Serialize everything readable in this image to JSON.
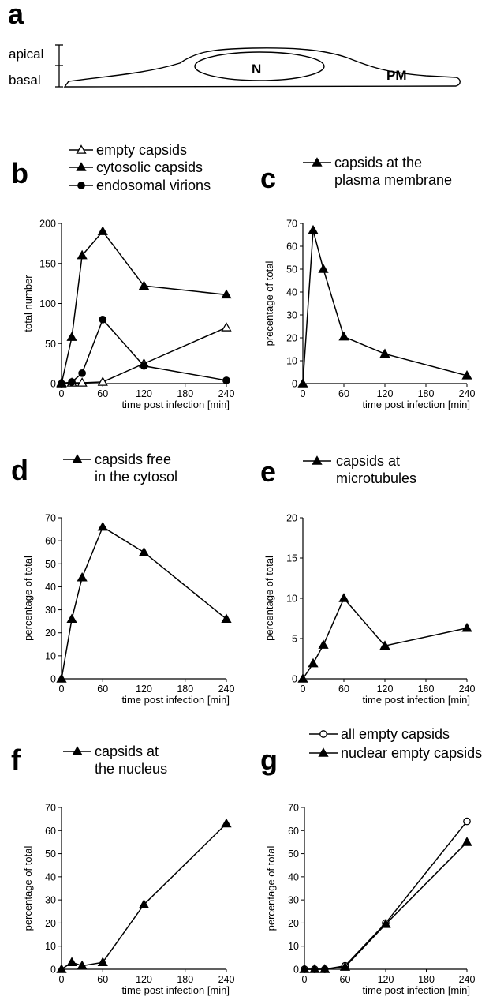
{
  "panel_a": {
    "letter": "a",
    "apical_label": "apical",
    "basal_label": "basal",
    "nucleus_label": "N",
    "membrane_label": "PM"
  },
  "chart_data": [
    {
      "id": "b",
      "letter": "b",
      "type": "line",
      "ylabel": "total number",
      "xlabel": "time post infection [min]",
      "xlim": [
        0,
        240
      ],
      "ylim": [
        0,
        200
      ],
      "xticks": [
        0,
        60,
        120,
        180,
        240
      ],
      "yticks": [
        0,
        50,
        100,
        150,
        200
      ],
      "series": [
        {
          "name": "empty capsids",
          "marker": "triangle-open",
          "x": [
            0,
            15,
            30,
            60,
            120,
            240
          ],
          "y": [
            1,
            1,
            1,
            2,
            25,
            70
          ]
        },
        {
          "name": "cytosolic capsids",
          "marker": "triangle",
          "x": [
            0,
            15,
            30,
            60,
            120,
            240
          ],
          "y": [
            0,
            58,
            160,
            190,
            122,
            111
          ]
        },
        {
          "name": "endosomal virions",
          "marker": "circle",
          "x": [
            0,
            15,
            30,
            60,
            120,
            240
          ],
          "y": [
            0,
            2,
            13,
            80,
            22,
            4
          ]
        }
      ]
    },
    {
      "id": "c",
      "letter": "c",
      "type": "line",
      "ylabel": "precentage of total",
      "xlabel": "time post infection [min]",
      "xlim": [
        0,
        240
      ],
      "ylim": [
        0,
        70
      ],
      "xticks": [
        0,
        60,
        120,
        180,
        240
      ],
      "yticks": [
        0,
        10,
        20,
        30,
        40,
        50,
        60,
        70
      ],
      "series": [
        {
          "name": "capsids at the plasma membrane",
          "legend_lines": [
            "capsids at the",
            "plasma membrane"
          ],
          "marker": "triangle",
          "x": [
            0,
            15,
            30,
            60,
            120,
            240
          ],
          "y": [
            0,
            67,
            50,
            20.5,
            13,
            3.5
          ]
        }
      ]
    },
    {
      "id": "d",
      "letter": "d",
      "type": "line",
      "ylabel": "percentage of total",
      "xlabel": "time post infection [min]",
      "xlim": [
        0,
        240
      ],
      "ylim": [
        0,
        70
      ],
      "xticks": [
        0,
        60,
        120,
        180,
        240
      ],
      "yticks": [
        0,
        10,
        20,
        30,
        40,
        50,
        60,
        70
      ],
      "series": [
        {
          "name": "capsids free in the cytosol",
          "legend_lines": [
            "capsids free",
            "in the cytosol"
          ],
          "marker": "triangle",
          "x": [
            0,
            15,
            30,
            60,
            120,
            240
          ],
          "y": [
            0,
            26,
            44,
            66,
            55,
            26
          ]
        }
      ]
    },
    {
      "id": "e",
      "letter": "e",
      "type": "line",
      "ylabel": "percentage of total",
      "xlabel": "time post infection [min]",
      "xlim": [
        0,
        240
      ],
      "ylim": [
        0,
        20
      ],
      "xticks": [
        0,
        60,
        120,
        180,
        240
      ],
      "yticks": [
        0,
        5,
        10,
        15,
        20
      ],
      "series": [
        {
          "name": "capsids at microtubules",
          "legend_lines": [
            "capsids at",
            "microtubules"
          ],
          "marker": "triangle",
          "x": [
            0,
            15,
            30,
            60,
            120,
            240
          ],
          "y": [
            0,
            1.9,
            4.2,
            10,
            4.1,
            6.3
          ]
        }
      ]
    },
    {
      "id": "f",
      "letter": "f",
      "type": "line",
      "ylabel": "percentage of total",
      "xlabel": "time post infection [min]",
      "xlim": [
        0,
        240
      ],
      "ylim": [
        0,
        70
      ],
      "xticks": [
        0,
        60,
        120,
        180,
        240
      ],
      "yticks": [
        0,
        10,
        20,
        30,
        40,
        50,
        60,
        70
      ],
      "series": [
        {
          "name": "capsids at the nucleus",
          "legend_lines": [
            "capsids at",
            "the nucleus"
          ],
          "marker": "triangle",
          "x": [
            0,
            15,
            30,
            60,
            120,
            240
          ],
          "y": [
            0,
            3,
            1.5,
            3,
            28,
            63
          ]
        }
      ]
    },
    {
      "id": "g",
      "letter": "g",
      "type": "line",
      "ylabel": "percentage of total",
      "xlabel": "time post infection [min]",
      "xlim": [
        0,
        240
      ],
      "ylim": [
        0,
        70
      ],
      "xticks": [
        0,
        60,
        120,
        180,
        240
      ],
      "yticks": [
        0,
        10,
        20,
        30,
        40,
        50,
        60,
        70
      ],
      "series": [
        {
          "name": "all empty capsids",
          "marker": "circle-open",
          "x": [
            0,
            15,
            30,
            60,
            120,
            240
          ],
          "y": [
            0,
            0,
            0,
            1.5,
            20,
            64
          ]
        },
        {
          "name": "nuclear empty capsids",
          "marker": "triangle",
          "x": [
            0,
            15,
            30,
            60,
            120,
            240
          ],
          "y": [
            0,
            0,
            0,
            1,
            19.5,
            55
          ]
        }
      ]
    }
  ]
}
